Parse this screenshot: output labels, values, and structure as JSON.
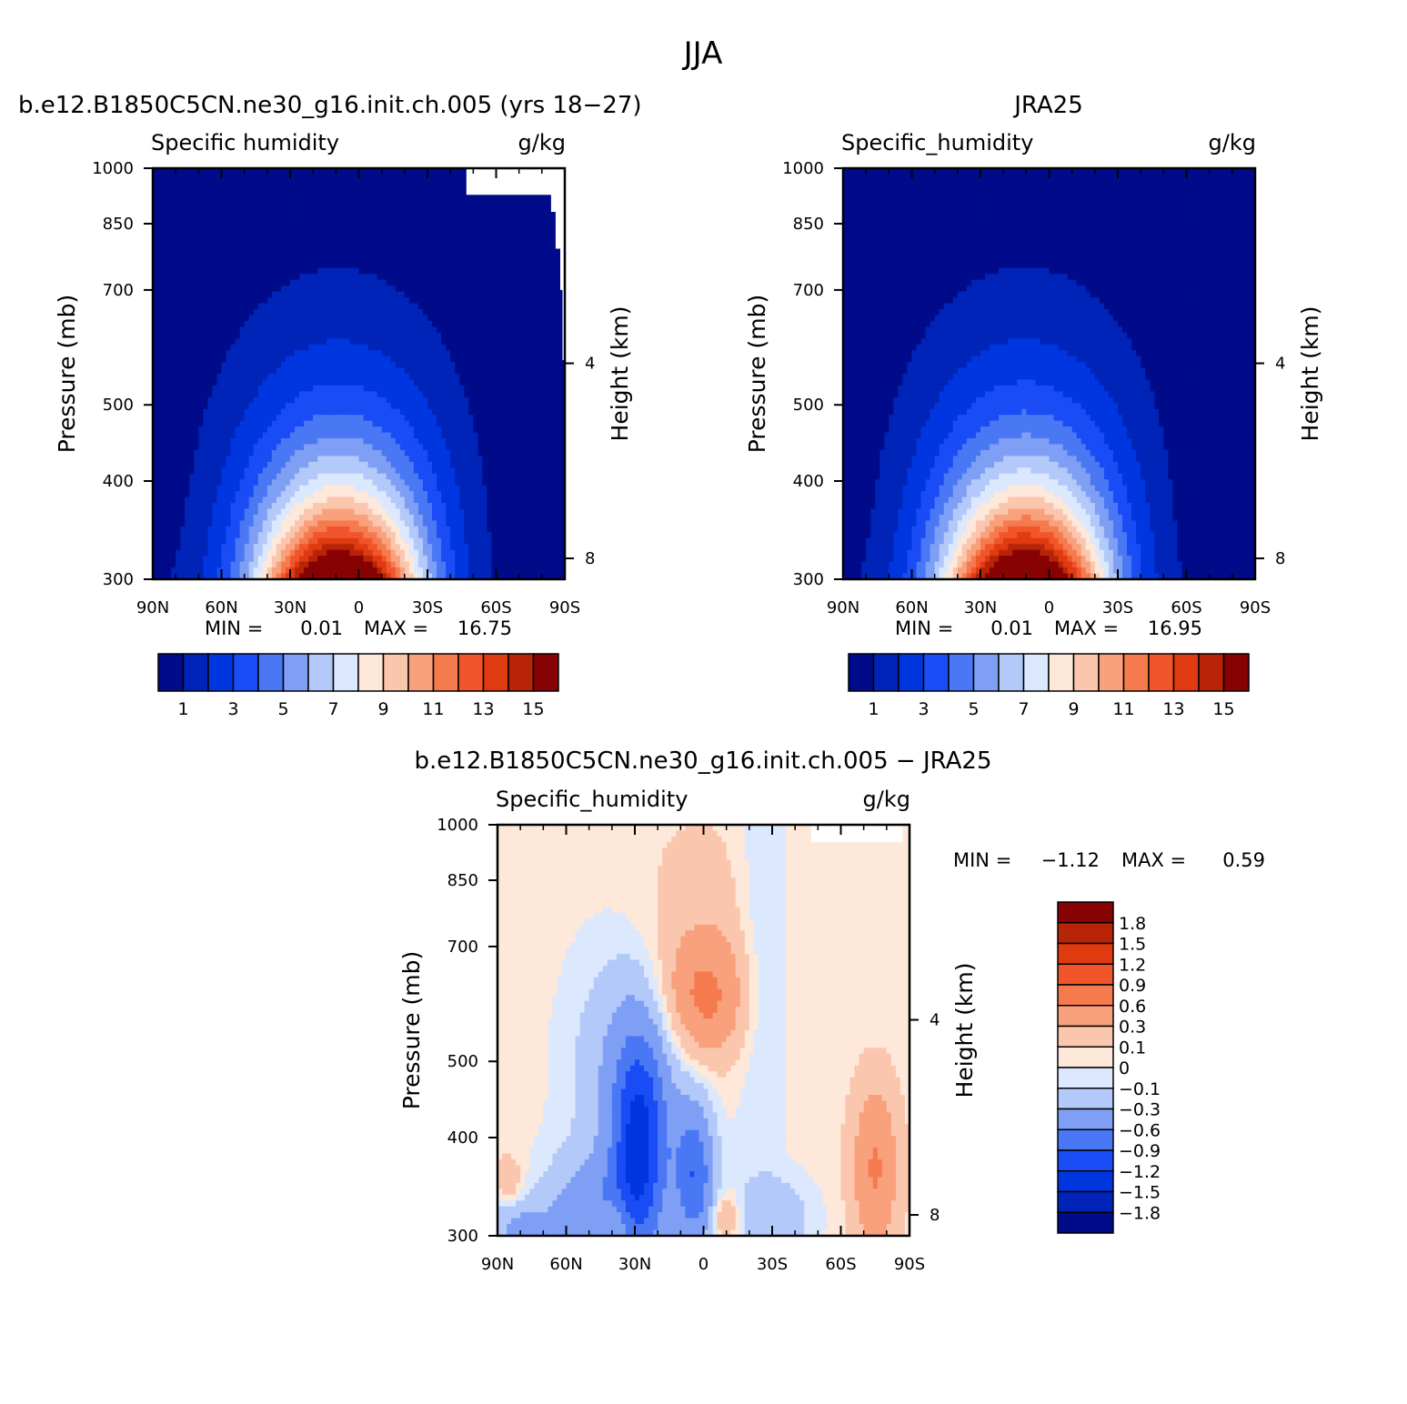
{
  "page_title": "JJA",
  "chart_data": [
    {
      "type": "heatmap",
      "panel": "model",
      "title": "b.e12.B1850C5CN.ne30_g16.init.ch.005 (yrs 18-27)",
      "left_label": "Specific humidity",
      "right_label": "g/kg",
      "ylabel": "Pressure (mb)",
      "y2label": "Height (km)",
      "xticks": [
        "90N",
        "60N",
        "30N",
        "0",
        "30S",
        "60S",
        "90S"
      ],
      "yticks": [
        "300",
        "400",
        "500",
        "700",
        "850",
        "1000"
      ],
      "y2ticks": [
        "8",
        "4"
      ],
      "xlim": [
        90,
        -90
      ],
      "ylim": [
        1000,
        300
      ],
      "stats": {
        "min_label": "MIN =",
        "min": "0.01",
        "max_label": "MAX =",
        "max": "16.75"
      },
      "colorbar": {
        "labels": [
          "1",
          "3",
          "5",
          "7",
          "9",
          "11",
          "13",
          "15"
        ],
        "colors": [
          "#000b8a",
          "#0024b8",
          "#0036e0",
          "#1a4cf5",
          "#4a78f5",
          "#7f9ff5",
          "#b3c9f9",
          "#dbe8fd",
          "#fde8da",
          "#fbc6ae",
          "#f8a17c",
          "#f57a4e",
          "#f1552b",
          "#e03a10",
          "#b82408",
          "#870202"
        ]
      },
      "peak": {
        "lat": 8,
        "value": 16.75
      }
    },
    {
      "type": "heatmap",
      "panel": "obs",
      "title": "JRA25",
      "left_label": "Specific_humidity",
      "right_label": "g/kg",
      "ylabel": "Pressure (mb)",
      "y2label": "Height (km)",
      "xticks": [
        "90N",
        "60N",
        "30N",
        "0",
        "30S",
        "60S",
        "90S"
      ],
      "yticks": [
        "300",
        "400",
        "500",
        "700",
        "850",
        "1000"
      ],
      "y2ticks": [
        "8",
        "4"
      ],
      "xlim": [
        90,
        -90
      ],
      "ylim": [
        1000,
        300
      ],
      "stats": {
        "min_label": "MIN =",
        "min": "0.01",
        "max_label": "MAX =",
        "max": "16.95"
      },
      "colorbar": {
        "labels": [
          "1",
          "3",
          "5",
          "7",
          "9",
          "11",
          "13",
          "15"
        ],
        "colors": [
          "#000b8a",
          "#0024b8",
          "#0036e0",
          "#1a4cf5",
          "#4a78f5",
          "#7f9ff5",
          "#b3c9f9",
          "#dbe8fd",
          "#fde8da",
          "#fbc6ae",
          "#f8a17c",
          "#f57a4e",
          "#f1552b",
          "#e03a10",
          "#b82408",
          "#870202"
        ]
      },
      "peak": {
        "lat": 10,
        "value": 16.95
      }
    },
    {
      "type": "heatmap",
      "panel": "difference",
      "title": "b.e12.B1850C5CN.ne30_g16.init.ch.005 - JRA25",
      "left_label": "Specific_humidity",
      "right_label": "g/kg",
      "ylabel": "Pressure (mb)",
      "y2label": "Height (km)",
      "xticks": [
        "90N",
        "60N",
        "30N",
        "0",
        "30S",
        "60S",
        "90S"
      ],
      "yticks": [
        "300",
        "400",
        "500",
        "700",
        "850",
        "1000"
      ],
      "y2ticks": [
        "8",
        "4"
      ],
      "xlim": [
        90,
        -90
      ],
      "ylim": [
        1000,
        300
      ],
      "stats": {
        "min_label": "MIN =",
        "min": "-1.12",
        "max_label": "MAX =",
        "max": "0.59"
      },
      "colorbar": {
        "labels": [
          "1.8",
          "1.5",
          "1.2",
          "0.9",
          "0.6",
          "0.3",
          "0.1",
          "0",
          "-0.1",
          "-0.3",
          "-0.6",
          "-0.9",
          "-1.2",
          "-1.5",
          "-1.8"
        ],
        "colors": [
          "#870202",
          "#b82408",
          "#e03a10",
          "#f1552b",
          "#f57a4e",
          "#f8a17c",
          "#fbc6ae",
          "#fde8da",
          "#dbe8fd",
          "#b3c9f9",
          "#7f9ff5",
          "#4a78f5",
          "#1a4cf5",
          "#0036e0",
          "#0024b8",
          "#000b8a"
        ]
      }
    }
  ]
}
